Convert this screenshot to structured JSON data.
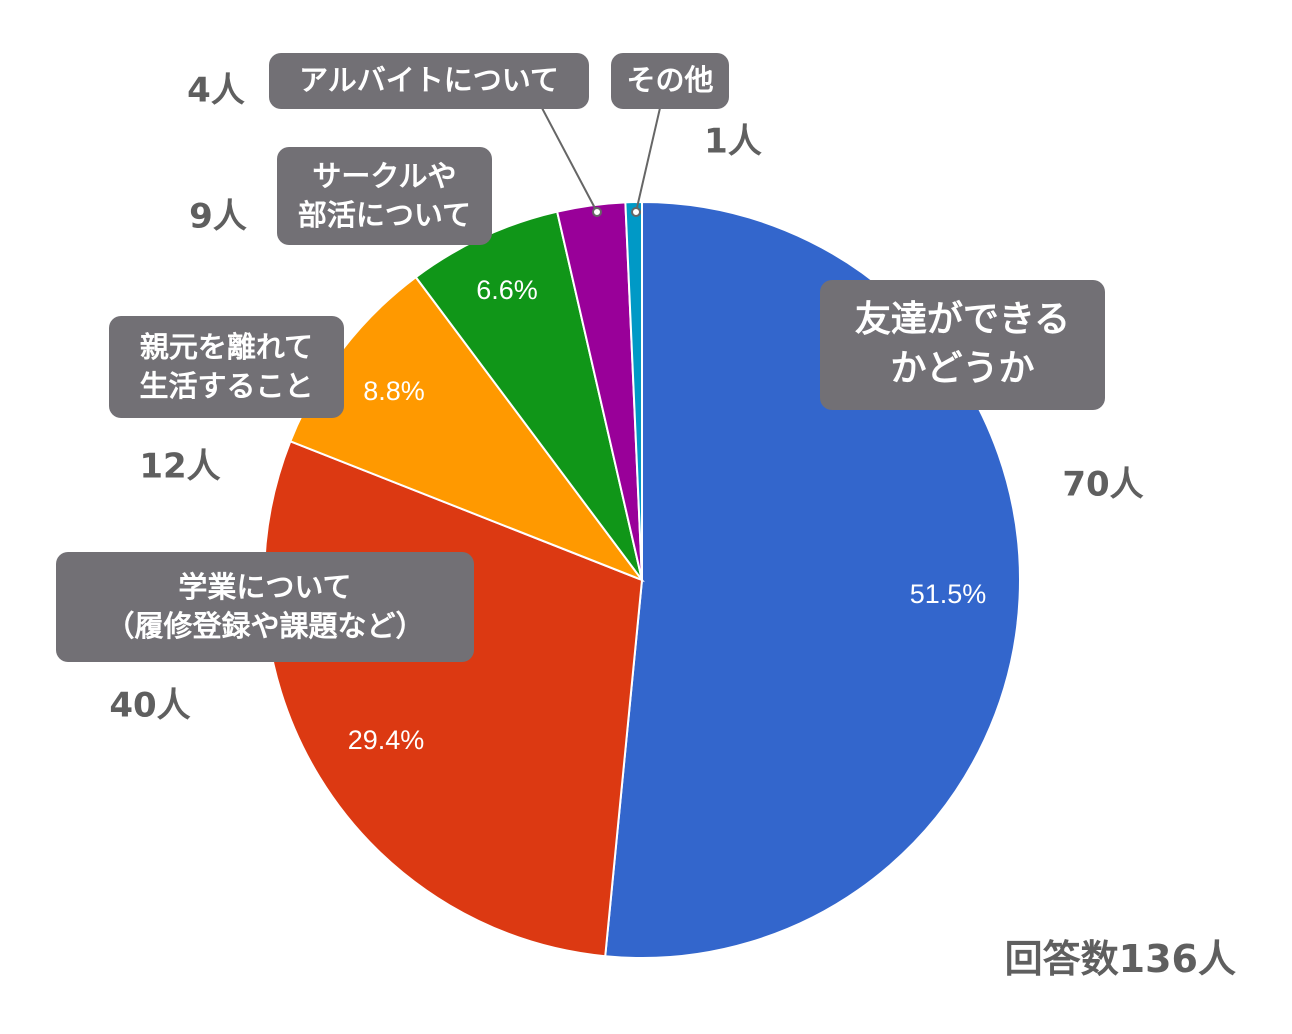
{
  "chart_data": {
    "type": "pie",
    "slices": [
      {
        "label": "友達ができる\nかどうか",
        "percent": 51.5,
        "pct_text": "51.5%",
        "count_text": "70人",
        "color": "#3366cc"
      },
      {
        "label": "学業について\n（履修登録や課題など）",
        "percent": 29.4,
        "pct_text": "29.4%",
        "count_text": "40人",
        "color": "#dc3912"
      },
      {
        "label": "親元を離れて\n生活すること",
        "percent": 8.8,
        "pct_text": "8.8%",
        "count_text": "12人",
        "color": "#ff9900"
      },
      {
        "label": "サークルや\n部活について",
        "percent": 6.6,
        "pct_text": "6.6%",
        "count_text": "9人",
        "color": "#109618"
      },
      {
        "label": "アルバイトについて",
        "percent": 2.9,
        "pct_text": "",
        "count_text": "4人",
        "color": "#990099"
      },
      {
        "label": "その他",
        "percent": 0.7,
        "pct_text": "",
        "count_text": "1人",
        "color": "#0099c6"
      }
    ]
  },
  "total_label": "回答数136人"
}
